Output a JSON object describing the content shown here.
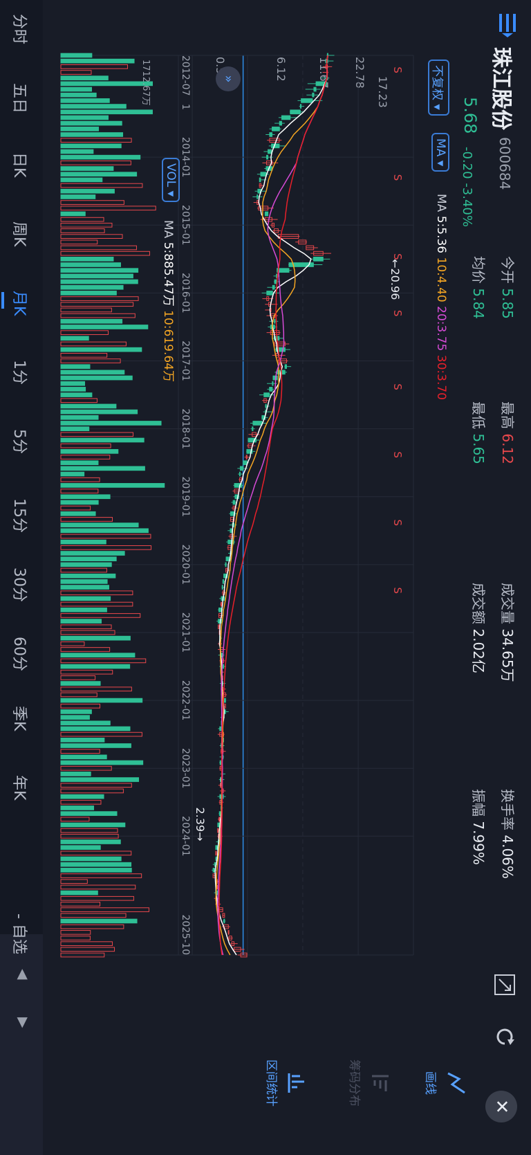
{
  "header": {
    "name": "珠江股份",
    "code": "600684",
    "price": "5.68",
    "change": "-0.20",
    "change_pct": "-3.40%"
  },
  "stats": {
    "open_label": "今开",
    "open_value": "5.85",
    "high_label": "最高",
    "high_value": "6.12",
    "volume_label": "成交量",
    "volume_value": "34.65万",
    "turnover_label": "换手率",
    "turnover_value": "4.06%",
    "avg_label": "均价",
    "avg_value": "5.84",
    "low_label": "最低",
    "low_value": "5.65",
    "amount_label": "成交额",
    "amount_value": "2.02亿",
    "amplitude_label": "振幅",
    "amplitude_value": "7.99%"
  },
  "controls": {
    "adjust_label": "不复权",
    "ma_label": "MA",
    "vol_label": "VOL"
  },
  "ma_legend": {
    "prefix": "MA",
    "ma5": "5:5.36",
    "ma10": "10:4.40",
    "ma20": "20:3.75",
    "ma30": "30:3.70"
  },
  "vol_legend": {
    "prefix": "MA",
    "ma5": "5:885.47万",
    "ma10": "10:619.64万",
    "axis_max": "1712.67万"
  },
  "price_axis": [
    "22.78",
    "17.23",
    "11.67",
    "6.12",
    "0.57"
  ],
  "date_axis": [
    "2012-07",
    "2014-01",
    "2015-01",
    "2016-01",
    "2017-01",
    "2018-01",
    "2019-01",
    "2020-01",
    "2021-01",
    "2022-01",
    "2023-01",
    "2024-01",
    "2025-10"
  ],
  "date_axis_extra": "1",
  "annotations": {
    "max_label": "←20.96",
    "min_label": "2.39→",
    "signal": "S"
  },
  "tabs": [
    "分时",
    "五日",
    "日K",
    "周K",
    "月K",
    "1分",
    "5分",
    "15分",
    "30分",
    "60分",
    "季K",
    "年K"
  ],
  "active_tab": "月K",
  "watchlist_label": "- 自选",
  "right_tools": {
    "draw_label": "画线",
    "chips_label": "筹码分布",
    "range_label": "区间统计"
  },
  "colors": {
    "up": "#e8484c",
    "down": "#2fbf95",
    "ma5": "#ffffff",
    "ma10": "#f5a623",
    "ma20": "#d64bd6",
    "ma30": "#e8202a",
    "accent": "#3a8cff"
  },
  "chart_data": {
    "type": "candlestick",
    "price_range": [
      0.57,
      22.78
    ],
    "x_range": [
      "2012-07",
      "2025-10"
    ],
    "max_price": 20.96,
    "min_price": 2.39,
    "last_close": 5.68,
    "approx_close_path": [
      {
        "date": "2012-07",
        "close": 14.2
      },
      {
        "date": "2013-01",
        "close": 13.5
      },
      {
        "date": "2013-07",
        "close": 9.2
      },
      {
        "date": "2014-01",
        "close": 8.3
      },
      {
        "date": "2014-07",
        "close": 7.2
      },
      {
        "date": "2015-01",
        "close": 8.8
      },
      {
        "date": "2015-06",
        "close": 13.8
      },
      {
        "date": "2015-09",
        "close": 9.5
      },
      {
        "date": "2016-01",
        "close": 8.1
      },
      {
        "date": "2016-07",
        "close": 9.0
      },
      {
        "date": "2017-01",
        "close": 9.6
      },
      {
        "date": "2017-07",
        "close": 8.2
      },
      {
        "date": "2018-01",
        "close": 6.8
      },
      {
        "date": "2018-07",
        "close": 5.6
      },
      {
        "date": "2019-01",
        "close": 4.9
      },
      {
        "date": "2019-07",
        "close": 4.6
      },
      {
        "date": "2020-01",
        "close": 4.2
      },
      {
        "date": "2020-07",
        "close": 3.5
      },
      {
        "date": "2021-01",
        "close": 3.3
      },
      {
        "date": "2021-07",
        "close": 3.6
      },
      {
        "date": "2022-01",
        "close": 3.9
      },
      {
        "date": "2022-07",
        "close": 3.5
      },
      {
        "date": "2023-01",
        "close": 3.4
      },
      {
        "date": "2023-07",
        "close": 3.6
      },
      {
        "date": "2024-01",
        "close": 3.2
      },
      {
        "date": "2024-07",
        "close": 2.7
      },
      {
        "date": "2025-01",
        "close": 3.3
      },
      {
        "date": "2025-07",
        "close": 4.6
      },
      {
        "date": "2025-10",
        "close": 5.68
      }
    ],
    "ma_lines": {
      "ma5": 5.36,
      "ma10": 4.4,
      "ma20": 3.75,
      "ma30": 3.7
    },
    "volume_axis_max": "1712.67万"
  }
}
